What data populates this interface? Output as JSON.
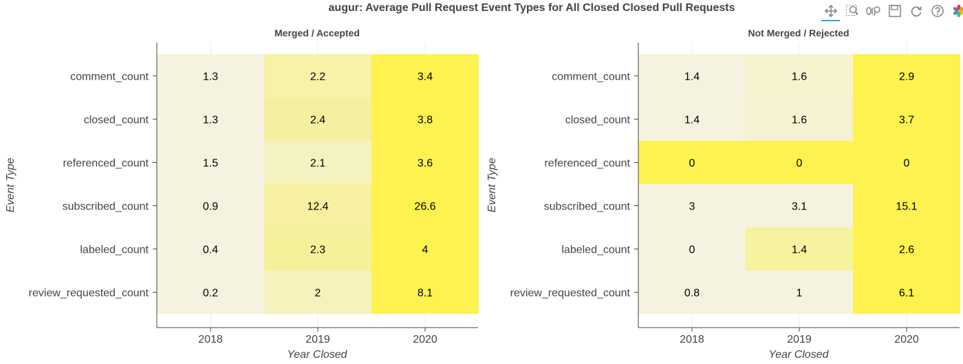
{
  "title": "augur: Average Pull Request Event Types for All Closed Closed Pull Requests",
  "toolbar": {
    "icons": [
      "pan-icon",
      "box-zoom-icon",
      "wheel-zoom-icon",
      "save-icon",
      "reset-icon",
      "help-icon",
      "bokeh-logo-icon"
    ]
  },
  "chart_data": [
    {
      "type": "heatmap",
      "title": "Merged / Accepted",
      "xlabel": "Year Closed",
      "ylabel": "Event Type",
      "x": [
        "2018",
        "2019",
        "2020"
      ],
      "y": [
        "comment_count",
        "closed_count",
        "referenced_count",
        "subscribed_count",
        "labeled_count",
        "review_requested_count"
      ],
      "values": [
        [
          1.3,
          2.2,
          3.4
        ],
        [
          1.3,
          2.4,
          3.8
        ],
        [
          1.5,
          2.1,
          3.6
        ],
        [
          0.9,
          12.4,
          26.6
        ],
        [
          0.4,
          2.3,
          4
        ],
        [
          0.2,
          2,
          8.1
        ]
      ],
      "colors": [
        [
          "#f5f3df",
          "#f6f2a6",
          "#fdf24f"
        ],
        [
          "#f5f3df",
          "#f5f0a0",
          "#fdf24f"
        ],
        [
          "#f5f3df",
          "#f5f2c1",
          "#fdf24f"
        ],
        [
          "#f5f3df",
          "#f6f0a0",
          "#fdf24f"
        ],
        [
          "#f5f3df",
          "#f5f19a",
          "#fdf24f"
        ],
        [
          "#f5f3df",
          "#f5f2bd",
          "#fdf24f"
        ]
      ]
    },
    {
      "type": "heatmap",
      "title": "Not Merged / Rejected",
      "xlabel": "Year Closed",
      "ylabel": "Event Type",
      "x": [
        "2018",
        "2019",
        "2020"
      ],
      "y": [
        "comment_count",
        "closed_count",
        "referenced_count",
        "subscribed_count",
        "labeled_count",
        "review_requested_count"
      ],
      "values": [
        [
          1.4,
          1.6,
          2.9
        ],
        [
          1.4,
          1.6,
          3.7
        ],
        [
          0,
          0,
          0
        ],
        [
          3,
          3.1,
          15.1
        ],
        [
          0,
          1.4,
          2.6
        ],
        [
          0.8,
          1,
          6.1
        ]
      ],
      "colors": [
        [
          "#f5f3df",
          "#f6f3cf",
          "#fdf24f"
        ],
        [
          "#f5f3df",
          "#f5f2d2",
          "#fdf24f"
        ],
        [
          "#fdf24f",
          "#fdf24f",
          "#fdf24f"
        ],
        [
          "#f5f3df",
          "#f5f3df",
          "#fdf24f"
        ],
        [
          "#f5f3df",
          "#f6f29d",
          "#fdf24f"
        ],
        [
          "#f5f3df",
          "#f5f3df",
          "#fdf24f"
        ]
      ]
    }
  ]
}
